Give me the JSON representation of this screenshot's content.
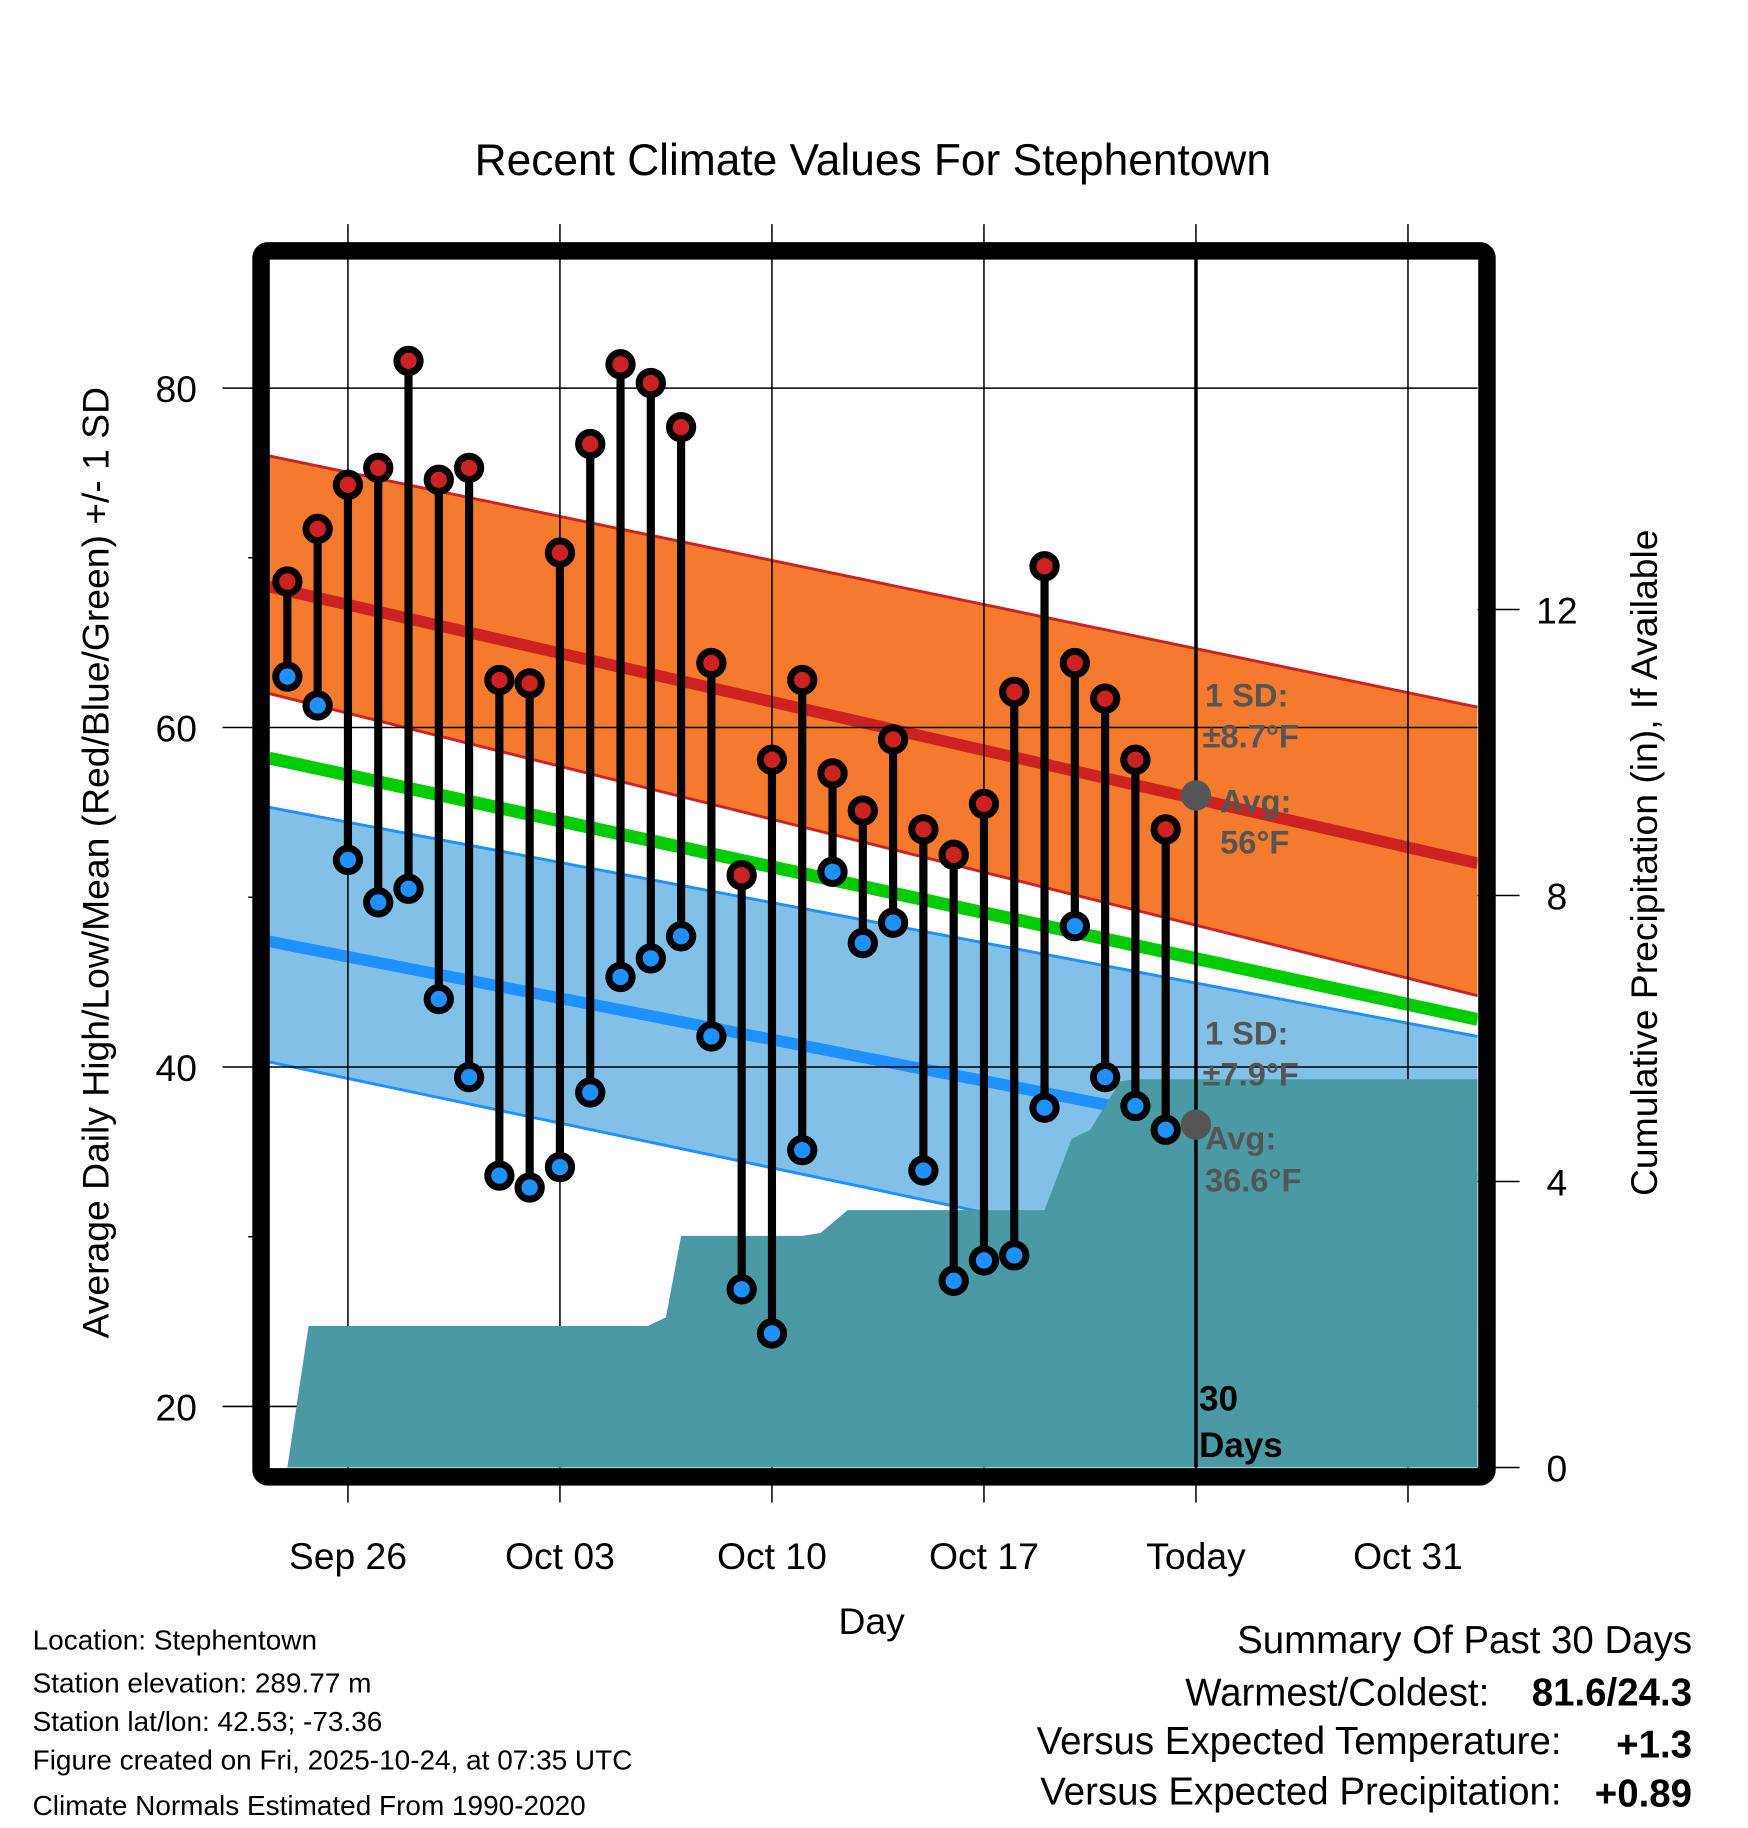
{
  "chart_data": {
    "type": "line",
    "title": "Recent Climate Values For Stephentown",
    "xlabel": "Day",
    "ylabel": "Average Daily High/Low/Mean (Red/Blue/Green) +/- 1 SD",
    "y2label": "Cumulative Precipitation (in), If Available",
    "ylim": [
      16.4,
      87.6
    ],
    "y2lim": [
      0,
      16.9
    ],
    "yticks": [
      20,
      40,
      60,
      80
    ],
    "y2ticks": [
      0,
      4,
      8,
      12
    ],
    "xtick_labels": [
      {
        "day": 2,
        "label": "Sep 26"
      },
      {
        "day": 9,
        "label": "Oct 03"
      },
      {
        "day": 16,
        "label": "Oct 10"
      },
      {
        "day": 23,
        "label": "Oct 17"
      },
      {
        "day": 30,
        "label": "Today"
      },
      {
        "day": 37,
        "label": "Oct 31"
      }
    ],
    "x_start_label": "Sep 24",
    "today_index": 30,
    "xlim": [
      -0.6,
      39.3
    ],
    "grid": true,
    "days": [
      "Sep 24",
      "Sep 25",
      "Sep 26",
      "Sep 27",
      "Sep 28",
      "Sep 29",
      "Sep 30",
      "Oct 01",
      "Oct 02",
      "Oct 03",
      "Oct 04",
      "Oct 05",
      "Oct 06",
      "Oct 07",
      "Oct 08",
      "Oct 09",
      "Oct 10",
      "Oct 11",
      "Oct 12",
      "Oct 13",
      "Oct 14",
      "Oct 15",
      "Oct 16",
      "Oct 17",
      "Oct 18",
      "Oct 19",
      "Oct 20",
      "Oct 21",
      "Oct 22",
      "Oct 23"
    ],
    "series": [
      {
        "name": "Daily High",
        "color": "#cc2222",
        "values": [
          68.6,
          71.7,
          74.3,
          75.3,
          81.6,
          74.6,
          75.3,
          62.8,
          62.6,
          70.3,
          76.7,
          81.4,
          80.3,
          77.7,
          63.8,
          51.3,
          58.1,
          62.8,
          57.3,
          55.1,
          59.3,
          54.0,
          52.5,
          55.5,
          62.1,
          69.5,
          63.8,
          61.7,
          58.1,
          54.0
        ]
      },
      {
        "name": "Daily Low",
        "color": "#1e90ff",
        "values": [
          63.0,
          61.3,
          52.2,
          49.7,
          50.5,
          44.0,
          39.4,
          33.6,
          32.9,
          34.1,
          38.5,
          45.3,
          46.4,
          47.7,
          41.8,
          26.9,
          24.3,
          35.1,
          51.5,
          47.3,
          48.5,
          33.9,
          27.4,
          28.6,
          28.9,
          37.6,
          48.3,
          39.4,
          37.7,
          36.3
        ]
      }
    ],
    "normals": {
      "x": [
        -0.6,
        39.3
      ],
      "high_avg": [
        68.3,
        52.0
      ],
      "high_upper": [
        76.0,
        61.2
      ],
      "high_lower": [
        62.0,
        44.2
      ],
      "mean": [
        58.2,
        42.8
      ],
      "low_avg": [
        47.4,
        33.5
      ],
      "low_upper": [
        55.3,
        41.8
      ],
      "low_lower": [
        40.3,
        25.3
      ]
    },
    "precipitation": {
      "color": "#4a9aa5",
      "day": [
        0,
        0.7,
        1,
        9,
        11.9,
        12.5,
        13,
        17,
        17.6,
        18.5,
        23,
        24,
        25,
        25.9,
        26.5,
        27.5,
        28,
        39.3
      ],
      "cumulative_in": [
        0,
        1.98,
        1.98,
        1.98,
        1.98,
        2.1,
        3.24,
        3.24,
        3.28,
        3.6,
        3.6,
        3.6,
        3.6,
        4.6,
        4.72,
        5.4,
        5.43,
        5.43
      ]
    },
    "annotations": {
      "high_sd": "1 SD:",
      "high_sd_value": "±8.7°F",
      "high_avg": "Avg:",
      "high_avg_value": "56°F",
      "low_sd": "1 SD:",
      "low_sd_value": "±7.9°F",
      "low_avg": "Avg:",
      "low_avg_value": "36.6°F",
      "today_high_avg": 56,
      "today_low_avg": 36.6,
      "window_line1": "30",
      "window_line2": "Days"
    },
    "colors": {
      "high_band": "#f47a2e",
      "high_line": "#cc2222",
      "low_band": "#82c0e8",
      "low_line": "#1e90ff",
      "mean_line": "#00cc00",
      "marker_today": "#555555"
    }
  },
  "footer": {
    "location": "Location: Stephentown",
    "elevation": "Station elevation: 289.77 m",
    "latlon": "Station lat/lon: 42.53; -73.36",
    "created": "Figure created on Fri, 2025-10-24, at 07:35 UTC",
    "normals": "Climate Normals Estimated From 1990-2020"
  },
  "summary": {
    "title": "Summary Of Past 30 Days",
    "warm_cold_label": "Warmest/Coldest:",
    "warm_cold_value": "81.6/24.3",
    "temp_label": "Versus Expected Temperature:",
    "temp_value": "+1.3",
    "temp_color": "#cc2222",
    "precip_label": "Versus Expected Precipitation:",
    "precip_value": "+0.89",
    "precip_color": "#22bb22"
  }
}
